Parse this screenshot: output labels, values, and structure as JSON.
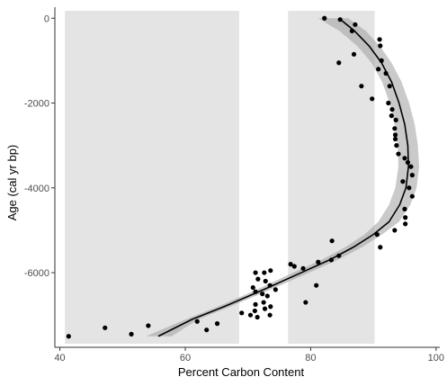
{
  "chart_data": {
    "type": "scatter",
    "title": "",
    "xlabel": "Percent Carbon Content",
    "ylabel": "Age (cal yr bp)",
    "xlim": [
      39.2,
      100.6
    ],
    "ylim": [
      -7760,
      260
    ],
    "x_ticks": [
      40,
      60,
      80,
      100
    ],
    "x_tick_labels": [
      "40",
      "60",
      "80",
      "100"
    ],
    "y_ticks": [
      0,
      -2000,
      -4000,
      -6000
    ],
    "y_tick_labels": [
      "0",
      "-2000",
      "-4000",
      "-6000"
    ],
    "grid": false,
    "legend": "none",
    "colors": {
      "points": "#000000",
      "smooth_line": "#000000",
      "ribbon": "#9e9e9e",
      "band": "#e4e4e4",
      "axis": "#333333",
      "tick_label": "#4d4d4d"
    },
    "shaded_bands": [
      {
        "x_range": [
          40.8,
          68.6
        ]
      },
      {
        "x_range": [
          76.4,
          90.2
        ]
      }
    ],
    "points": [
      [
        82.2,
        0
      ],
      [
        84.7,
        -30
      ],
      [
        87.1,
        -150
      ],
      [
        86.6,
        -300
      ],
      [
        91,
        -500
      ],
      [
        91.1,
        -650
      ],
      [
        86.9,
        -850
      ],
      [
        84.5,
        -1050
      ],
      [
        91.3,
        -1000
      ],
      [
        90.8,
        -1200
      ],
      [
        92,
        -1300
      ],
      [
        92.6,
        -1600
      ],
      [
        88.1,
        -1600
      ],
      [
        89.8,
        -1900
      ],
      [
        92.4,
        -2000
      ],
      [
        93,
        -2150
      ],
      [
        92.9,
        -2300
      ],
      [
        93.6,
        -2400
      ],
      [
        93.4,
        -2600
      ],
      [
        93.5,
        -2750
      ],
      [
        93.5,
        -2850
      ],
      [
        93.7,
        -3000
      ],
      [
        94,
        -3200
      ],
      [
        95,
        -3300
      ],
      [
        95.5,
        -3400
      ],
      [
        96,
        -3500
      ],
      [
        96.2,
        -3700
      ],
      [
        94.7,
        -3850
      ],
      [
        95.7,
        -4000
      ],
      [
        96.2,
        -4200
      ],
      [
        95,
        -4500
      ],
      [
        95.1,
        -4700
      ],
      [
        95.1,
        -4850
      ],
      [
        93.4,
        -5000
      ],
      [
        90.6,
        -5100
      ],
      [
        91.1,
        -5400
      ],
      [
        83.4,
        -5250
      ],
      [
        84.5,
        -5600
      ],
      [
        83.3,
        -5700
      ],
      [
        81.2,
        -5750
      ],
      [
        77.4,
        -5850
      ],
      [
        76.8,
        -5800
      ],
      [
        78.8,
        -5900
      ],
      [
        80.9,
        -6300
      ],
      [
        79.2,
        -6700
      ],
      [
        71.2,
        -6000
      ],
      [
        72.6,
        -6000
      ],
      [
        73.6,
        -5950
      ],
      [
        71.6,
        -6150
      ],
      [
        72.8,
        -6200
      ],
      [
        70.8,
        -6350
      ],
      [
        73.5,
        -6300
      ],
      [
        71.2,
        -6450
      ],
      [
        72.3,
        -6500
      ],
      [
        73.1,
        -6550
      ],
      [
        74.4,
        -6400
      ],
      [
        72.5,
        -6700
      ],
      [
        71.2,
        -6750
      ],
      [
        73.6,
        -6800
      ],
      [
        71.1,
        -6900
      ],
      [
        72.7,
        -6850
      ],
      [
        70.4,
        -7000
      ],
      [
        71.5,
        -7050
      ],
      [
        73.5,
        -7000
      ],
      [
        69,
        -6950
      ],
      [
        65.1,
        -7200
      ],
      [
        61.9,
        -7150
      ],
      [
        63.4,
        -7350
      ],
      [
        54.1,
        -7250
      ],
      [
        47.2,
        -7300
      ],
      [
        51.4,
        -7450
      ],
      [
        41.4,
        -7500
      ]
    ],
    "smooth_line": [
      [
        84.5,
        0
      ],
      [
        87,
        -300
      ],
      [
        89.3,
        -650
      ],
      [
        91.3,
        -1050
      ],
      [
        92.9,
        -1500
      ],
      [
        94.1,
        -2000
      ],
      [
        95,
        -2500
      ],
      [
        95.5,
        -3000
      ],
      [
        95.6,
        -3500
      ],
      [
        95.2,
        -4000
      ],
      [
        94.2,
        -4400
      ],
      [
        92.5,
        -4800
      ],
      [
        90,
        -5100
      ],
      [
        86.8,
        -5400
      ],
      [
        83,
        -5700
      ],
      [
        78.5,
        -6000
      ],
      [
        72.5,
        -6400
      ],
      [
        66.2,
        -6800
      ],
      [
        61.1,
        -7100
      ],
      [
        55.7,
        -7500
      ]
    ],
    "ribbon_upper": [
      [
        86,
        0
      ],
      [
        88.8,
        -300
      ],
      [
        91,
        -650
      ],
      [
        92.9,
        -1050
      ],
      [
        94.5,
        -1500
      ],
      [
        95.7,
        -2000
      ],
      [
        96.6,
        -2500
      ],
      [
        97.1,
        -3000
      ],
      [
        97.3,
        -3500
      ],
      [
        96.9,
        -4000
      ],
      [
        95.9,
        -4400
      ],
      [
        94.1,
        -4800
      ],
      [
        91.4,
        -5100
      ],
      [
        88.2,
        -5400
      ],
      [
        84.3,
        -5700
      ],
      [
        79.8,
        -6000
      ],
      [
        73.6,
        -6400
      ],
      [
        67.2,
        -6800
      ],
      [
        62.1,
        -7100
      ],
      [
        57.8,
        -7500
      ]
    ],
    "ribbon_lower": [
      [
        81.2,
        0
      ],
      [
        84.6,
        -300
      ],
      [
        87.4,
        -650
      ],
      [
        89.7,
        -1050
      ],
      [
        91.4,
        -1500
      ],
      [
        92.6,
        -2000
      ],
      [
        93.4,
        -2500
      ],
      [
        93.9,
        -3000
      ],
      [
        94,
        -3500
      ],
      [
        93.5,
        -4000
      ],
      [
        92.5,
        -4400
      ],
      [
        90.8,
        -4800
      ],
      [
        88.6,
        -5100
      ],
      [
        85.5,
        -5400
      ],
      [
        81.7,
        -5700
      ],
      [
        77.2,
        -6000
      ],
      [
        71.4,
        -6400
      ],
      [
        65.2,
        -6800
      ],
      [
        60.1,
        -7100
      ],
      [
        53.7,
        -7500
      ]
    ]
  }
}
